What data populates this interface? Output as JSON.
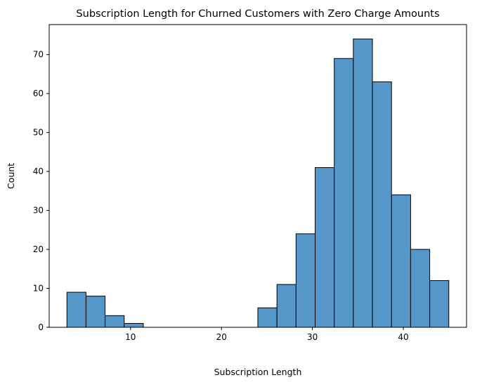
{
  "chart_data": {
    "type": "bar",
    "title": "Subscription Length for Churned Customers with Zero Charge Amounts",
    "xlabel": "Subscription Length",
    "ylabel": "Count",
    "xlim": [
      1.05,
      46.95
    ],
    "ylim": [
      0,
      77.7
    ],
    "xticks": [
      10,
      20,
      30,
      40
    ],
    "yticks": [
      0,
      10,
      20,
      30,
      40,
      50,
      60,
      70
    ],
    "grid": false,
    "bar_color": "#5497c8",
    "edge_color": "#000000",
    "bins": [
      {
        "x0": 3.0,
        "x1": 5.1,
        "count": 9
      },
      {
        "x0": 5.1,
        "x1": 7.2,
        "count": 8
      },
      {
        "x0": 7.2,
        "x1": 9.3,
        "count": 3
      },
      {
        "x0": 9.3,
        "x1": 11.4,
        "count": 1
      },
      {
        "x0": 11.4,
        "x1": 13.5,
        "count": 0
      },
      {
        "x0": 13.5,
        "x1": 15.6,
        "count": 0
      },
      {
        "x0": 15.6,
        "x1": 17.7,
        "count": 0
      },
      {
        "x0": 17.7,
        "x1": 19.8,
        "count": 0
      },
      {
        "x0": 19.8,
        "x1": 21.9,
        "count": 0
      },
      {
        "x0": 21.9,
        "x1": 24.0,
        "count": 0
      },
      {
        "x0": 24.0,
        "x1": 26.1,
        "count": 5
      },
      {
        "x0": 26.1,
        "x1": 28.2,
        "count": 11
      },
      {
        "x0": 28.2,
        "x1": 30.3,
        "count": 24
      },
      {
        "x0": 30.3,
        "x1": 32.4,
        "count": 41
      },
      {
        "x0": 32.4,
        "x1": 34.5,
        "count": 69
      },
      {
        "x0": 34.5,
        "x1": 36.6,
        "count": 74
      },
      {
        "x0": 36.6,
        "x1": 38.7,
        "count": 63
      },
      {
        "x0": 38.7,
        "x1": 40.8,
        "count": 34
      },
      {
        "x0": 40.8,
        "x1": 42.9,
        "count": 20
      },
      {
        "x0": 42.9,
        "x1": 45.0,
        "count": 12
      }
    ]
  }
}
